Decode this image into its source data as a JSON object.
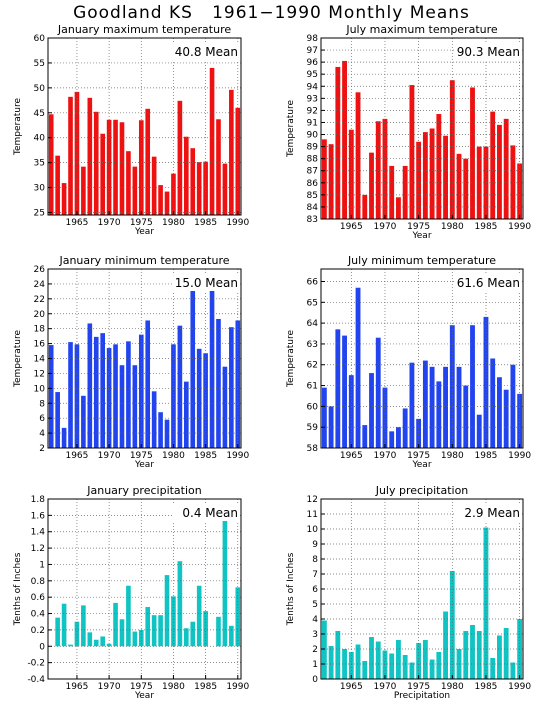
{
  "title": "Goodland KS   1961−1990 Monthly Means",
  "colors": {
    "red": "#ee1111",
    "blue": "#2244ee",
    "cyan": "#11c4c4"
  },
  "chart_data": [
    {
      "type": "bar",
      "title": "January maximum temperature",
      "xlabel": "Year",
      "ylabel": "Temperature",
      "color": "red",
      "mean_label": "40.8 Mean",
      "grid": true,
      "x": [
        1961,
        1962,
        1963,
        1964,
        1965,
        1966,
        1967,
        1968,
        1969,
        1970,
        1971,
        1972,
        1973,
        1974,
        1975,
        1976,
        1977,
        1978,
        1979,
        1980,
        1981,
        1982,
        1983,
        1984,
        1985,
        1986,
        1987,
        1988,
        1989,
        1990
      ],
      "values": [
        44.7,
        36.4,
        30.9,
        48.2,
        49.2,
        34.2,
        48.0,
        45.2,
        40.8,
        43.6,
        43.6,
        43.1,
        37.3,
        34.2,
        43.5,
        45.8,
        36.2,
        30.5,
        29.2,
        32.8,
        47.4,
        40.2,
        37.9,
        35.1,
        35.2,
        54.0,
        43.7,
        34.8,
        49.6,
        46.0
      ],
      "xlim": [
        1960.5,
        1990.5
      ],
      "ylim": [
        24.5,
        60
      ],
      "yticks": [
        "25",
        "30",
        "35",
        "40",
        "45",
        "50",
        "55",
        "60"
      ],
      "ytick_values": [
        25,
        30,
        35,
        40,
        45,
        50,
        55,
        60
      ],
      "xticks": [
        "1965",
        "1970",
        "1975",
        "1980",
        "1985",
        "1990"
      ],
      "xtick_values": [
        1965,
        1970,
        1975,
        1980,
        1985,
        1990
      ]
    },
    {
      "type": "bar",
      "title": "July maximum temperature",
      "xlabel": "Year",
      "ylabel": "Temperature",
      "color": "red",
      "mean_label": "90.3 Mean",
      "grid": true,
      "x": [
        1961,
        1962,
        1963,
        1964,
        1965,
        1966,
        1967,
        1968,
        1969,
        1970,
        1971,
        1972,
        1973,
        1974,
        1975,
        1976,
        1977,
        1978,
        1979,
        1980,
        1981,
        1982,
        1983,
        1984,
        1985,
        1986,
        1987,
        1988,
        1989,
        1990
      ],
      "values": [
        89.6,
        89.2,
        95.6,
        96.1,
        90.4,
        93.5,
        85.0,
        88.5,
        91.1,
        91.3,
        87.4,
        84.8,
        87.4,
        94.1,
        89.4,
        90.2,
        90.5,
        91.7,
        89.9,
        94.5,
        88.4,
        88.0,
        93.9,
        89.0,
        89.0,
        91.9,
        90.8,
        91.3,
        89.1,
        87.6
      ],
      "xlim": [
        1960.5,
        1990.5
      ],
      "ylim": [
        83,
        98
      ],
      "yticks": [
        "83",
        "84",
        "85",
        "86",
        "87",
        "88",
        "89",
        "90",
        "91",
        "92",
        "93",
        "94",
        "95",
        "96",
        "97",
        "98"
      ],
      "ytick_values": [
        83,
        84,
        85,
        86,
        87,
        88,
        89,
        90,
        91,
        92,
        93,
        94,
        95,
        96,
        97,
        98
      ],
      "xticks": [
        "1965",
        "1970",
        "1975",
        "1980",
        "1985",
        "1990"
      ],
      "xtick_values": [
        1965,
        1970,
        1975,
        1980,
        1985,
        1990
      ]
    },
    {
      "type": "bar",
      "title": "January minimum temperature",
      "xlabel": "Year",
      "ylabel": "Temperature",
      "color": "blue",
      "mean_label": "15.0 Mean",
      "grid": true,
      "x": [
        1961,
        1962,
        1963,
        1964,
        1965,
        1966,
        1967,
        1968,
        1969,
        1970,
        1971,
        1972,
        1973,
        1974,
        1975,
        1976,
        1977,
        1978,
        1979,
        1980,
        1981,
        1982,
        1983,
        1984,
        1985,
        1986,
        1987,
        1988,
        1989,
        1990
      ],
      "values": [
        15.8,
        9.5,
        4.7,
        16.2,
        15.9,
        9.0,
        18.7,
        16.9,
        17.4,
        15.4,
        15.9,
        13.1,
        16.3,
        13.1,
        17.2,
        19.1,
        9.6,
        6.8,
        5.8,
        15.9,
        18.4,
        10.9,
        23.8,
        15.3,
        14.7,
        23.9,
        19.3,
        12.9,
        18.2,
        19.1
      ],
      "xlim": [
        1960.5,
        1990.5
      ],
      "ylim": [
        2,
        26
      ],
      "yticks": [
        "2",
        "4",
        "6",
        "8",
        "10",
        "12",
        "14",
        "16",
        "18",
        "20",
        "22",
        "24",
        "26"
      ],
      "ytick_values": [
        2,
        4,
        6,
        8,
        10,
        12,
        14,
        16,
        18,
        20,
        22,
        24,
        26
      ],
      "xticks": [
        "1965",
        "1970",
        "1975",
        "1980",
        "1985",
        "1990"
      ],
      "xtick_values": [
        1965,
        1970,
        1975,
        1980,
        1985,
        1990
      ]
    },
    {
      "type": "bar",
      "title": "July minimum temperature",
      "xlabel": "Year",
      "ylabel": "Temperature",
      "color": "blue",
      "mean_label": "61.6 Mean",
      "grid": true,
      "x": [
        1961,
        1962,
        1963,
        1964,
        1965,
        1966,
        1967,
        1968,
        1969,
        1970,
        1971,
        1972,
        1973,
        1974,
        1975,
        1976,
        1977,
        1978,
        1979,
        1980,
        1981,
        1982,
        1983,
        1984,
        1985,
        1986,
        1987,
        1988,
        1989,
        1990
      ],
      "values": [
        60.9,
        60.0,
        63.7,
        63.4,
        61.5,
        65.7,
        59.1,
        61.6,
        63.3,
        60.9,
        58.8,
        59.0,
        59.9,
        62.1,
        59.4,
        62.2,
        61.9,
        61.2,
        61.9,
        63.9,
        61.9,
        61.0,
        63.9,
        59.6,
        64.3,
        62.3,
        61.4,
        60.8,
        62.0,
        60.6
      ],
      "xlim": [
        1960.5,
        1990.5
      ],
      "ylim": [
        58,
        66.6
      ],
      "yticks": [
        "58",
        "59",
        "60",
        "61",
        "62",
        "63",
        "64",
        "65",
        "66"
      ],
      "ytick_values": [
        58,
        59,
        60,
        61,
        62,
        63,
        64,
        65,
        66
      ],
      "xticks": [
        "1965",
        "1970",
        "1975",
        "1980",
        "1985",
        "1990"
      ],
      "xtick_values": [
        1965,
        1970,
        1975,
        1980,
        1985,
        1990
      ]
    },
    {
      "type": "bar",
      "title": "January precipitation",
      "xlabel": "Year",
      "ylabel": "Tenths of Inches",
      "color": "cyan",
      "mean_label": "0.4 Mean",
      "grid": true,
      "x": [
        1961,
        1962,
        1963,
        1964,
        1965,
        1966,
        1967,
        1968,
        1969,
        1970,
        1971,
        1972,
        1973,
        1974,
        1975,
        1976,
        1977,
        1978,
        1979,
        1980,
        1981,
        1982,
        1983,
        1984,
        1985,
        1986,
        1987,
        1988,
        1989,
        1990
      ],
      "values": [
        0.0,
        0.35,
        0.52,
        0.02,
        0.3,
        0.5,
        0.17,
        0.08,
        0.12,
        0.03,
        0.53,
        0.33,
        0.74,
        0.18,
        0.2,
        0.48,
        0.38,
        0.38,
        0.87,
        0.61,
        1.04,
        0.22,
        0.3,
        0.74,
        0.43,
        0.0,
        0.36,
        1.58,
        0.25,
        0.72
      ],
      "xlim": [
        1960.5,
        1990.5
      ],
      "ylim": [
        -0.4,
        1.8
      ],
      "yticks": [
        "-0.4",
        "-0.2",
        "0",
        "0.2",
        "0.4",
        "0.6",
        "0.8",
        "1",
        "1.2",
        "1.4",
        "1.6",
        "1.8"
      ],
      "ytick_values": [
        -0.4,
        -0.2,
        0,
        0.2,
        0.4,
        0.6,
        0.8,
        1,
        1.2,
        1.4,
        1.6,
        1.8
      ],
      "xticks": [
        "1965",
        "1970",
        "1975",
        "1980",
        "1985",
        "1990"
      ],
      "xtick_values": [
        1965,
        1970,
        1975,
        1980,
        1985,
        1990
      ]
    },
    {
      "type": "bar",
      "title": "July precipitation",
      "xlabel": "Precipitation",
      "ylabel": "Tenths of Inches",
      "color": "cyan",
      "mean_label": "2.9 Mean",
      "grid": true,
      "x": [
        1961,
        1962,
        1963,
        1964,
        1965,
        1966,
        1967,
        1968,
        1969,
        1970,
        1971,
        1972,
        1973,
        1974,
        1975,
        1976,
        1977,
        1978,
        1979,
        1980,
        1981,
        1982,
        1983,
        1984,
        1985,
        1986,
        1987,
        1988,
        1989,
        1990
      ],
      "values": [
        3.9,
        2.2,
        3.2,
        2.0,
        1.8,
        2.3,
        1.2,
        2.8,
        2.5,
        1.9,
        1.7,
        2.6,
        1.6,
        1.1,
        2.4,
        2.6,
        1.3,
        1.8,
        4.5,
        7.2,
        2.0,
        3.2,
        3.6,
        3.2,
        10.1,
        1.4,
        2.9,
        3.4,
        1.1,
        4.0
      ],
      "xlim": [
        1960.5,
        1990.5
      ],
      "ylim": [
        0,
        12
      ],
      "yticks": [
        "0",
        "1",
        "2",
        "3",
        "4",
        "5",
        "6",
        "7",
        "8",
        "9",
        "10",
        "11",
        "12"
      ],
      "ytick_values": [
        0,
        1,
        2,
        3,
        4,
        5,
        6,
        7,
        8,
        9,
        10,
        11,
        12
      ],
      "xticks": [
        "1965",
        "1970",
        "1975",
        "1980",
        "1985",
        "1990"
      ],
      "xtick_values": [
        1965,
        1970,
        1975,
        1980,
        1985,
        1990
      ]
    }
  ]
}
